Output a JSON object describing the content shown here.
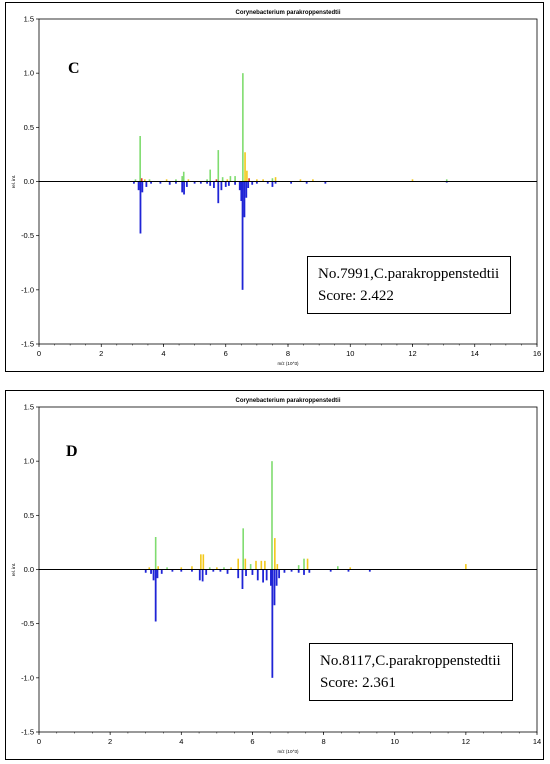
{
  "chart_data": [
    {
      "type": "bar",
      "panel_label": "C",
      "title": "Corynebacterium parakroppenstedtii",
      "xlabel": "m/z (10^3)",
      "ylabel": "rel. int.",
      "xlim": [
        0,
        16
      ],
      "ylim": [
        -1.5,
        1.5
      ],
      "xticks": [
        0,
        2,
        4,
        6,
        8,
        10,
        12,
        14,
        16
      ],
      "yticks": [
        1.5,
        1.0,
        0.5,
        0.0,
        -0.5,
        -1.0,
        -1.5
      ],
      "yticklabels": [
        "1.5",
        "1.0",
        "0.5",
        "0.0",
        "-0.5",
        "-1.0",
        "-1.5"
      ],
      "annotation": {
        "line1": "No.7991,C.parakroppenstedtii",
        "line2": "Score: 2.422"
      },
      "colors": {
        "match": "#7fdc6f",
        "partial": "#f2c81a",
        "mismatch": "#e23a2a",
        "reference": "#1f24d6"
      },
      "sample_peaks": [
        {
          "x": 3.1,
          "y": 0.02,
          "c": "match"
        },
        {
          "x": 3.25,
          "y": 0.42,
          "c": "match"
        },
        {
          "x": 3.3,
          "y": 0.03,
          "c": "mismatch"
        },
        {
          "x": 3.4,
          "y": 0.02,
          "c": "partial"
        },
        {
          "x": 3.55,
          "y": 0.02,
          "c": "match"
        },
        {
          "x": 4.1,
          "y": 0.02,
          "c": "partial"
        },
        {
          "x": 4.4,
          "y": 0.02,
          "c": "match"
        },
        {
          "x": 4.6,
          "y": 0.05,
          "c": "match"
        },
        {
          "x": 4.65,
          "y": 0.09,
          "c": "match"
        },
        {
          "x": 4.8,
          "y": 0.02,
          "c": "partial"
        },
        {
          "x": 5.4,
          "y": 0.02,
          "c": "match"
        },
        {
          "x": 5.5,
          "y": 0.11,
          "c": "match"
        },
        {
          "x": 5.7,
          "y": 0.02,
          "c": "mismatch"
        },
        {
          "x": 5.76,
          "y": 0.29,
          "c": "match"
        },
        {
          "x": 5.9,
          "y": 0.04,
          "c": "match"
        },
        {
          "x": 6.05,
          "y": 0.02,
          "c": "partial"
        },
        {
          "x": 6.15,
          "y": 0.05,
          "c": "match"
        },
        {
          "x": 6.3,
          "y": 0.05,
          "c": "match"
        },
        {
          "x": 6.55,
          "y": 1.0,
          "c": "match"
        },
        {
          "x": 6.62,
          "y": 0.27,
          "c": "partial"
        },
        {
          "x": 6.68,
          "y": 0.1,
          "c": "partial"
        },
        {
          "x": 6.75,
          "y": 0.03,
          "c": "mismatch"
        },
        {
          "x": 7.0,
          "y": 0.02,
          "c": "partial"
        },
        {
          "x": 7.2,
          "y": 0.02,
          "c": "partial"
        },
        {
          "x": 7.5,
          "y": 0.03,
          "c": "match"
        },
        {
          "x": 7.6,
          "y": 0.04,
          "c": "partial"
        },
        {
          "x": 8.4,
          "y": 0.02,
          "c": "partial"
        },
        {
          "x": 8.8,
          "y": 0.02,
          "c": "partial"
        },
        {
          "x": 12.0,
          "y": 0.02,
          "c": "partial"
        },
        {
          "x": 13.1,
          "y": 0.02,
          "c": "match"
        }
      ],
      "reference_peaks": [
        {
          "x": 3.05,
          "y": -0.02
        },
        {
          "x": 3.2,
          "y": -0.08
        },
        {
          "x": 3.26,
          "y": -0.48
        },
        {
          "x": 3.32,
          "y": -0.1
        },
        {
          "x": 3.45,
          "y": -0.05
        },
        {
          "x": 3.6,
          "y": -0.02
        },
        {
          "x": 3.9,
          "y": -0.02
        },
        {
          "x": 4.2,
          "y": -0.03
        },
        {
          "x": 4.4,
          "y": -0.02
        },
        {
          "x": 4.6,
          "y": -0.1
        },
        {
          "x": 4.66,
          "y": -0.12
        },
        {
          "x": 4.75,
          "y": -0.05
        },
        {
          "x": 5.0,
          "y": -0.02
        },
        {
          "x": 5.2,
          "y": -0.02
        },
        {
          "x": 5.4,
          "y": -0.02
        },
        {
          "x": 5.5,
          "y": -0.04
        },
        {
          "x": 5.62,
          "y": -0.06
        },
        {
          "x": 5.76,
          "y": -0.2
        },
        {
          "x": 5.86,
          "y": -0.08
        },
        {
          "x": 6.0,
          "y": -0.05
        },
        {
          "x": 6.1,
          "y": -0.04
        },
        {
          "x": 6.3,
          "y": -0.03
        },
        {
          "x": 6.45,
          "y": -0.08
        },
        {
          "x": 6.5,
          "y": -0.18
        },
        {
          "x": 6.54,
          "y": -1.0
        },
        {
          "x": 6.6,
          "y": -0.33
        },
        {
          "x": 6.66,
          "y": -0.15
        },
        {
          "x": 6.72,
          "y": -0.06
        },
        {
          "x": 6.85,
          "y": -0.03
        },
        {
          "x": 7.0,
          "y": -0.02
        },
        {
          "x": 7.35,
          "y": -0.02
        },
        {
          "x": 7.5,
          "y": -0.05
        },
        {
          "x": 7.6,
          "y": -0.02
        },
        {
          "x": 8.1,
          "y": -0.02
        },
        {
          "x": 8.6,
          "y": -0.02
        },
        {
          "x": 9.2,
          "y": -0.02
        },
        {
          "x": 13.1,
          "y": -0.01
        }
      ]
    },
    {
      "type": "bar",
      "panel_label": "D",
      "title": "Corynebacterium parakroppenstedtii",
      "xlabel": "m/z (10^3)",
      "ylabel": "rel. int.",
      "xlim": [
        0,
        14
      ],
      "ylim": [
        -1.5,
        1.5
      ],
      "xticks": [
        0,
        2,
        4,
        6,
        8,
        10,
        12,
        14
      ],
      "yticks": [
        1.5,
        1.0,
        0.5,
        0.0,
        -0.5,
        -1.0,
        -1.5
      ],
      "yticklabels": [
        "1.5",
        "1.0",
        "0.5",
        "0.0",
        "-0.5",
        "-1.0",
        "-1.5"
      ],
      "annotation": {
        "line1": "No.8117,C.parakroppenstedtii",
        "line2": "Score: 2.361"
      },
      "colors": {
        "match": "#7fdc6f",
        "partial": "#f2c81a",
        "mismatch": "#e23a2a",
        "reference": "#1f24d6"
      },
      "sample_peaks": [
        {
          "x": 3.1,
          "y": 0.02,
          "c": "partial"
        },
        {
          "x": 3.28,
          "y": 0.3,
          "c": "match"
        },
        {
          "x": 3.35,
          "y": 0.03,
          "c": "partial"
        },
        {
          "x": 3.6,
          "y": 0.02,
          "c": "match"
        },
        {
          "x": 4.0,
          "y": 0.02,
          "c": "partial"
        },
        {
          "x": 4.3,
          "y": 0.03,
          "c": "partial"
        },
        {
          "x": 4.55,
          "y": 0.14,
          "c": "partial"
        },
        {
          "x": 4.62,
          "y": 0.14,
          "c": "partial"
        },
        {
          "x": 4.8,
          "y": 0.02,
          "c": "match"
        },
        {
          "x": 5.0,
          "y": 0.02,
          "c": "partial"
        },
        {
          "x": 5.2,
          "y": 0.02,
          "c": "match"
        },
        {
          "x": 5.4,
          "y": 0.02,
          "c": "partial"
        },
        {
          "x": 5.6,
          "y": 0.1,
          "c": "partial"
        },
        {
          "x": 5.74,
          "y": 0.38,
          "c": "match"
        },
        {
          "x": 5.8,
          "y": 0.1,
          "c": "partial"
        },
        {
          "x": 5.95,
          "y": 0.05,
          "c": "match"
        },
        {
          "x": 6.1,
          "y": 0.08,
          "c": "partial"
        },
        {
          "x": 6.25,
          "y": 0.08,
          "c": "partial"
        },
        {
          "x": 6.35,
          "y": 0.08,
          "c": "partial"
        },
        {
          "x": 6.55,
          "y": 1.0,
          "c": "match"
        },
        {
          "x": 6.63,
          "y": 0.29,
          "c": "partial"
        },
        {
          "x": 6.7,
          "y": 0.05,
          "c": "partial"
        },
        {
          "x": 7.3,
          "y": 0.04,
          "c": "match"
        },
        {
          "x": 7.45,
          "y": 0.1,
          "c": "match"
        },
        {
          "x": 7.55,
          "y": 0.1,
          "c": "partial"
        },
        {
          "x": 8.4,
          "y": 0.03,
          "c": "match"
        },
        {
          "x": 8.75,
          "y": 0.02,
          "c": "partial"
        },
        {
          "x": 12.0,
          "y": 0.05,
          "c": "partial"
        }
      ],
      "reference_peaks": [
        {
          "x": 3.0,
          "y": -0.03
        },
        {
          "x": 3.15,
          "y": -0.04
        },
        {
          "x": 3.22,
          "y": -0.1
        },
        {
          "x": 3.28,
          "y": -0.48
        },
        {
          "x": 3.33,
          "y": -0.08
        },
        {
          "x": 3.45,
          "y": -0.04
        },
        {
          "x": 3.75,
          "y": -0.02
        },
        {
          "x": 4.0,
          "y": -0.02
        },
        {
          "x": 4.3,
          "y": -0.02
        },
        {
          "x": 4.52,
          "y": -0.1
        },
        {
          "x": 4.6,
          "y": -0.11
        },
        {
          "x": 4.7,
          "y": -0.05
        },
        {
          "x": 4.9,
          "y": -0.02
        },
        {
          "x": 5.1,
          "y": -0.02
        },
        {
          "x": 5.3,
          "y": -0.04
        },
        {
          "x": 5.6,
          "y": -0.08
        },
        {
          "x": 5.72,
          "y": -0.18
        },
        {
          "x": 5.82,
          "y": -0.06
        },
        {
          "x": 6.0,
          "y": -0.05
        },
        {
          "x": 6.15,
          "y": -0.1
        },
        {
          "x": 6.3,
          "y": -0.12
        },
        {
          "x": 6.4,
          "y": -0.1
        },
        {
          "x": 6.52,
          "y": -0.15
        },
        {
          "x": 6.56,
          "y": -1.0
        },
        {
          "x": 6.62,
          "y": -0.33
        },
        {
          "x": 6.68,
          "y": -0.15
        },
        {
          "x": 6.75,
          "y": -0.08
        },
        {
          "x": 6.9,
          "y": -0.03
        },
        {
          "x": 7.1,
          "y": -0.02
        },
        {
          "x": 7.3,
          "y": -0.03
        },
        {
          "x": 7.45,
          "y": -0.05
        },
        {
          "x": 7.6,
          "y": -0.03
        },
        {
          "x": 8.2,
          "y": -0.02
        },
        {
          "x": 8.7,
          "y": -0.02
        },
        {
          "x": 9.3,
          "y": -0.02
        }
      ]
    }
  ]
}
